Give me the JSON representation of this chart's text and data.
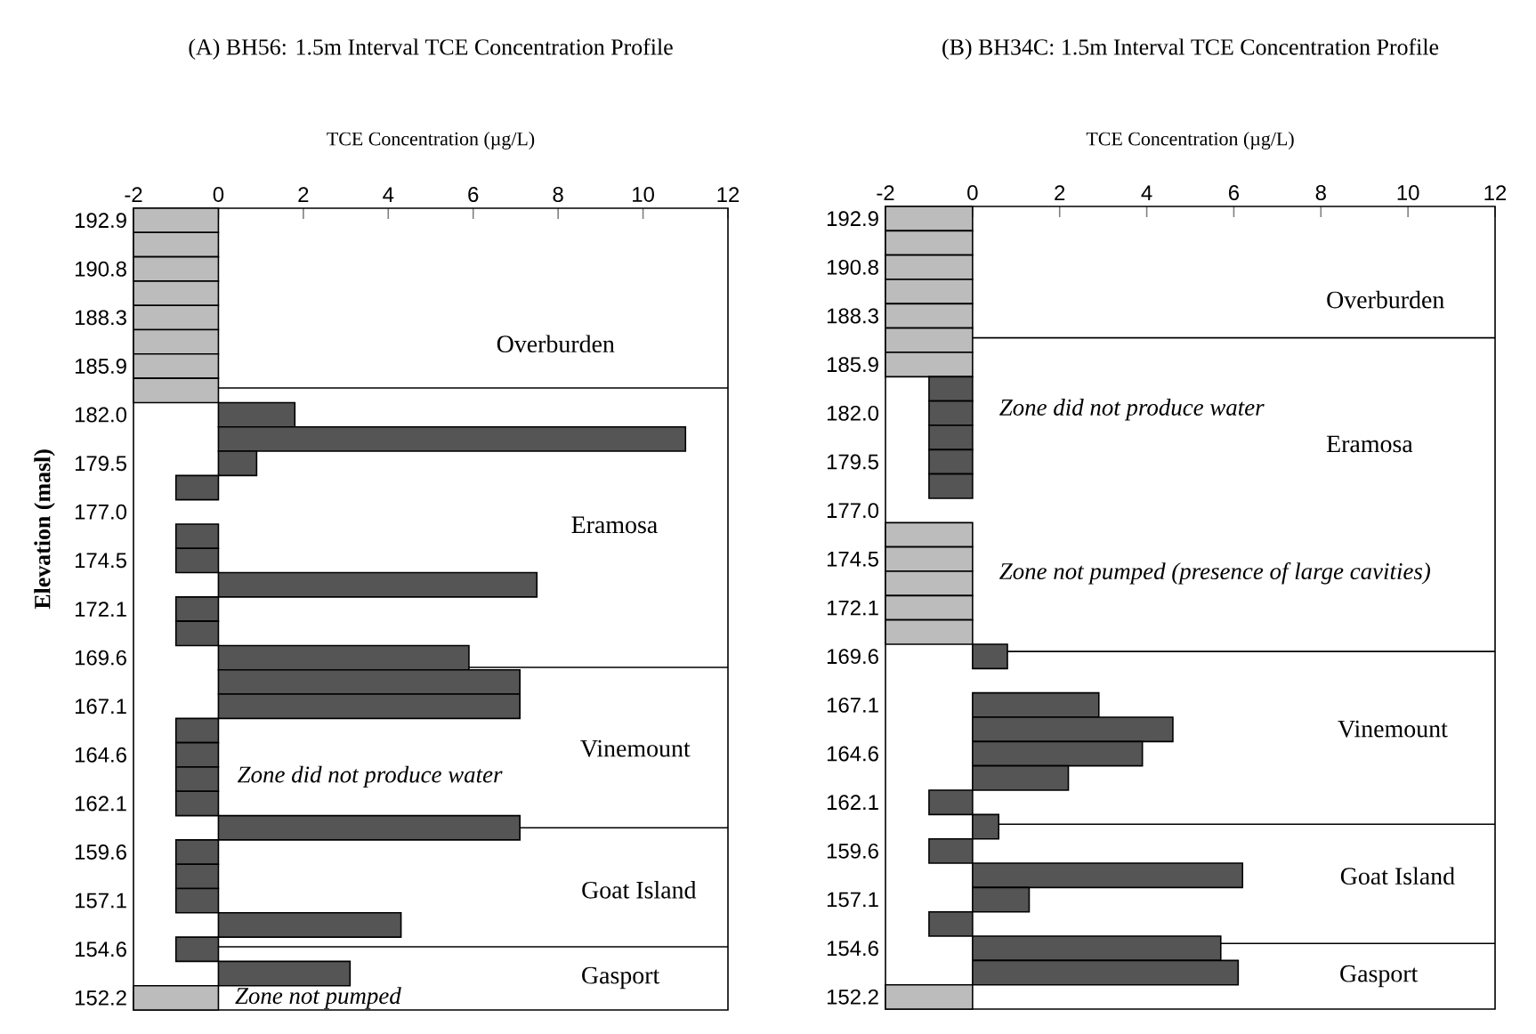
{
  "chart_data": [
    {
      "type": "bar",
      "orientation": "horizontal",
      "title": "(A) BH56: 1.5m Interval TCE Concentration Profile",
      "xlabel": "TCE Concentration (µg/L)",
      "ylabel": "Elevation (masl)",
      "categories": [
        "192.9",
        null,
        "190.8",
        null,
        "188.3",
        null,
        "185.9",
        null,
        "182.0",
        null,
        "179.5",
        null,
        "177.0",
        null,
        "174.5",
        null,
        "172.1",
        null,
        "169.6",
        null,
        "167.1",
        null,
        "164.6",
        null,
        "162.1",
        null,
        "159.6",
        null,
        "157.1",
        null,
        "154.6",
        null,
        "152.2"
      ],
      "values": [
        -2,
        -2,
        -2,
        -2,
        -2,
        -2,
        -2,
        -2,
        1.8,
        11.0,
        0.9,
        -1,
        null,
        -1,
        -1,
        7.5,
        -1,
        -1,
        5.9,
        7.1,
        7.1,
        -1,
        -1,
        -1,
        -1,
        7.1,
        -1,
        -1,
        -1,
        4.3,
        -1,
        3.1,
        -2
      ],
      "colors": [
        "#bcbcbc",
        "#bcbcbc",
        "#bcbcbc",
        "#bcbcbc",
        "#bcbcbc",
        "#bcbcbc",
        "#bcbcbc",
        "#bcbcbc",
        "#555555",
        "#555555",
        "#555555",
        "#555555",
        null,
        "#555555",
        "#555555",
        "#555555",
        "#555555",
        "#555555",
        "#555555",
        "#555555",
        "#555555",
        "#555555",
        "#555555",
        "#555555",
        "#555555",
        "#555555",
        "#555555",
        "#555555",
        "#555555",
        "#555555",
        "#555555",
        "#555555",
        "#bcbcbc"
      ],
      "xlim": [
        -2,
        12
      ],
      "xticks": [
        -2,
        0,
        2,
        4,
        6,
        8,
        10,
        12
      ],
      "annotations": [
        "Overburden",
        "Eramosa",
        "Vinemount",
        "Goat Island",
        "Gasport",
        "Zone did not produce water",
        "Zone not pumped"
      ]
    },
    {
      "type": "bar",
      "orientation": "horizontal",
      "title": "(B) BH34C: 1.5m Interval TCE Concentration Profile",
      "xlabel": "TCE Concentration (µg/L)",
      "categories": [
        "192.9",
        null,
        "190.8",
        null,
        "188.3",
        null,
        "185.9",
        null,
        "182.0",
        null,
        "179.5",
        null,
        "177.0",
        null,
        "174.5",
        null,
        "172.1",
        null,
        "169.6",
        null,
        "167.1",
        null,
        "164.6",
        null,
        "162.1",
        null,
        "159.6",
        null,
        "157.1",
        null,
        "154.6",
        null,
        "152.2"
      ],
      "values": [
        -2,
        -2,
        -2,
        -2,
        -2,
        -2,
        -2,
        -1,
        -1,
        -1,
        -1,
        -1,
        null,
        -2,
        -2,
        -2,
        -2,
        -2,
        0.8,
        null,
        2.9,
        4.6,
        3.9,
        2.2,
        -1,
        0.6,
        -1,
        6.2,
        1.3,
        -1,
        5.7,
        6.1,
        -2
      ],
      "colors": [
        "#bcbcbc",
        "#bcbcbc",
        "#bcbcbc",
        "#bcbcbc",
        "#bcbcbc",
        "#bcbcbc",
        "#bcbcbc",
        "#555555",
        "#555555",
        "#555555",
        "#555555",
        "#555555",
        null,
        "#bcbcbc",
        "#bcbcbc",
        "#bcbcbc",
        "#bcbcbc",
        "#bcbcbc",
        "#555555",
        null,
        "#555555",
        "#555555",
        "#555555",
        "#555555",
        "#555555",
        "#555555",
        "#555555",
        "#555555",
        "#555555",
        "#555555",
        "#555555",
        "#555555",
        "#bcbcbc"
      ],
      "xlim": [
        -2,
        12
      ],
      "xticks": [
        -2,
        0,
        2,
        4,
        6,
        8,
        10,
        12
      ],
      "annotations": [
        "Overburden",
        "Eramosa",
        "Vinemount",
        "Goat Island",
        "Gasport",
        "Zone did not produce water",
        "Zone not pumped (presence of large cavities)"
      ]
    }
  ]
}
